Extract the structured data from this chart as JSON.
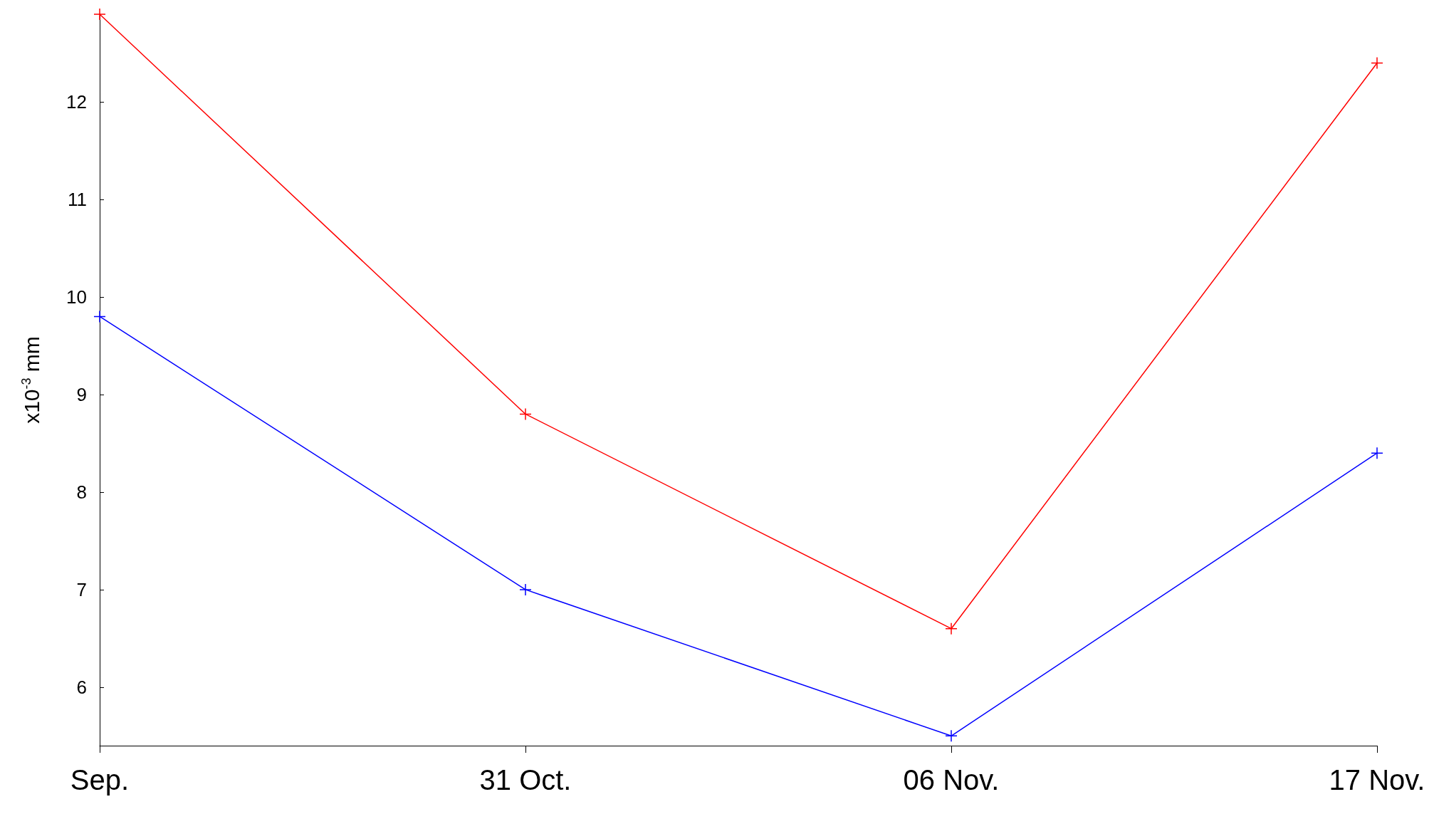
{
  "chart_data": {
    "type": "line",
    "ylabel": "x10$^{-3}$ mm",
    "categories": [
      "Sep.",
      "31 Oct.",
      "06 Nov.",
      "17 Nov."
    ],
    "series": [
      {
        "color": "#ff0000",
        "values": [
          12.9,
          8.8,
          6.6,
          12.4
        ]
      },
      {
        "color": "#0000ff",
        "values": [
          9.8,
          7.0,
          5.5,
          8.4
        ]
      }
    ],
    "ylim": [
      5.4,
      12.9
    ],
    "yticks": [
      6,
      7,
      8,
      9,
      10,
      11,
      12
    ],
    "grid": false,
    "marker": "cross",
    "line_style": "solid"
  }
}
